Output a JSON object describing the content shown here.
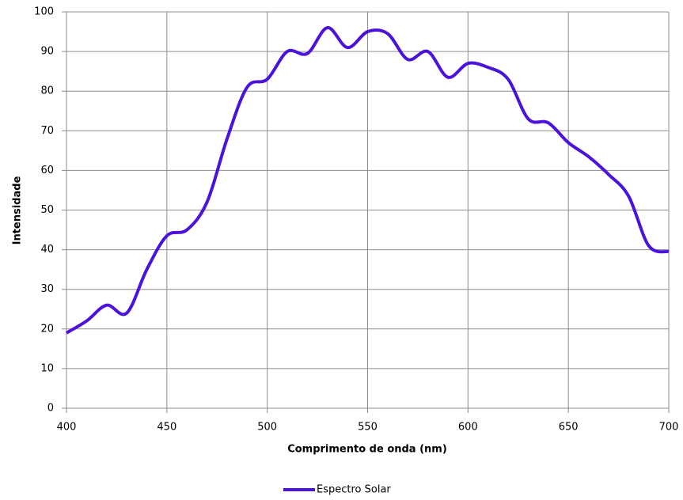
{
  "chart_data": {
    "type": "line",
    "xlabel": "Comprimento de onda (nm)",
    "ylabel": "Intensidade",
    "x": [
      400,
      410,
      420,
      430,
      440,
      450,
      460,
      470,
      480,
      490,
      500,
      510,
      520,
      530,
      540,
      550,
      560,
      570,
      580,
      590,
      600,
      610,
      620,
      630,
      640,
      650,
      660,
      670,
      680,
      690,
      700
    ],
    "series": [
      {
        "name": "Espectro Solar",
        "color": "#4b12dc",
        "values": [
          19,
          22,
          26,
          24,
          35,
          43.5,
          45,
          52,
          68,
          81,
          83,
          90,
          89.5,
          96,
          91,
          95,
          94.5,
          88,
          90,
          83.5,
          87,
          86,
          83,
          73,
          72,
          67,
          63.5,
          59,
          53.5,
          41,
          39.5
        ]
      }
    ],
    "xlim": [
      400,
      700
    ],
    "xticks": [
      400,
      450,
      500,
      550,
      600,
      650,
      700
    ],
    "ylim": [
      0,
      100
    ],
    "yticks": [
      0,
      10,
      20,
      30,
      40,
      50,
      60,
      70,
      80,
      90,
      100
    ],
    "grid": true,
    "legend": "bottom"
  }
}
